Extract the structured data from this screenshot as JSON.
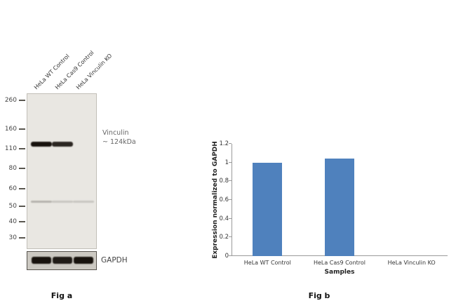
{
  "fig_a": {
    "caption": "Fig a",
    "lane_labels": [
      "HeLa WT Control",
      "HeLa Cas9 Control",
      "HeLa Vinculin KO"
    ],
    "mw_markers": [
      {
        "label": "260",
        "pos": 0.045
      },
      {
        "label": "160",
        "pos": 0.23
      },
      {
        "label": "110",
        "pos": 0.356
      },
      {
        "label": "80",
        "pos": 0.482
      },
      {
        "label": "60",
        "pos": 0.613
      },
      {
        "label": "50",
        "pos": 0.725
      },
      {
        "label": "40",
        "pos": 0.824
      },
      {
        "label": "30",
        "pos": 0.928
      }
    ],
    "annotation": {
      "line1": "Vinculin",
      "line2": "~ 124kDa"
    },
    "loading_control_label": "GAPDH",
    "vinculin_bands": [
      1,
      0.9,
      0
    ],
    "nonspecific_bands": [
      0.32,
      0.2,
      0.2
    ],
    "gapdh_bands": [
      1,
      0.95,
      1
    ]
  },
  "chart_data": {
    "type": "bar",
    "title": "",
    "categories": [
      "HeLa WT Control",
      "HeLa Cas9 Control",
      "HeLa Vinculin KO"
    ],
    "values": [
      1.0,
      1.04,
      0
    ],
    "xlabel": "Samples",
    "ylabel": "Expression normalized to GAPDH",
    "ylim": [
      0,
      1.2
    ],
    "ytick_labels": [
      "0",
      "0.2",
      "0.4",
      "0.6",
      "0.8",
      "1",
      "1.2"
    ],
    "bar_color": "#4f81bd",
    "grid": false,
    "legend": false
  },
  "fig_b": {
    "caption": "Fig b"
  }
}
